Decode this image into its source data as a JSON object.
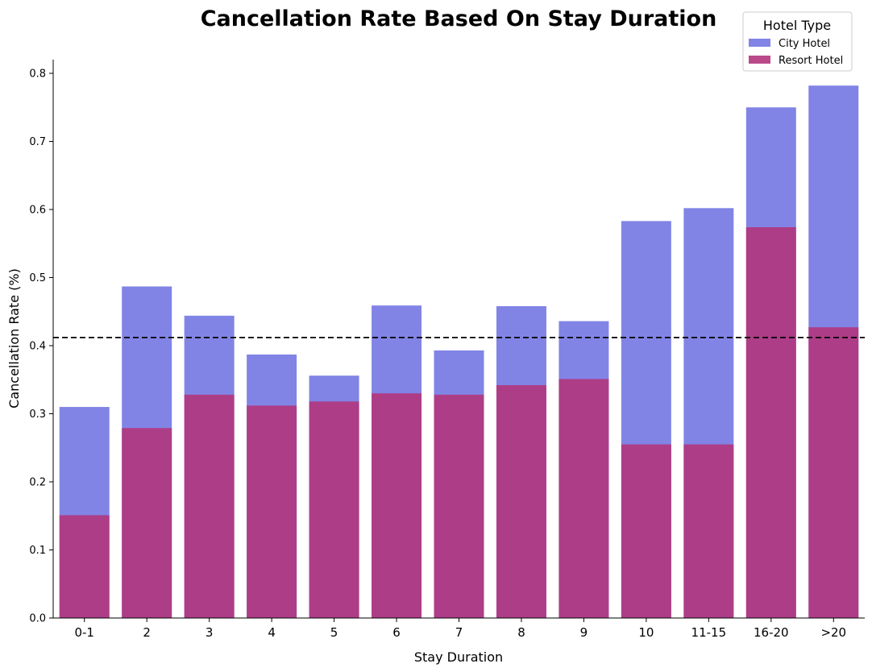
{
  "chart_data": {
    "type": "bar",
    "title": "Cancellation Rate Based On Stay Duration",
    "xlabel": "Stay Duration",
    "ylabel": "Cancellation Rate (%)",
    "categories": [
      "0-1",
      "2",
      "3",
      "4",
      "5",
      "6",
      "7",
      "8",
      "9",
      "10",
      "11-15",
      "16-20",
      ">20"
    ],
    "series": [
      {
        "name": "City Hotel",
        "color": "#6b6ee0",
        "values": [
          0.31,
          0.487,
          0.444,
          0.387,
          0.356,
          0.459,
          0.393,
          0.458,
          0.436,
          0.583,
          0.602,
          0.75,
          0.782
        ]
      },
      {
        "name": "Resort Hotel",
        "color": "#b3357d",
        "values": [
          0.151,
          0.279,
          0.328,
          0.312,
          0.318,
          0.33,
          0.328,
          0.342,
          0.351,
          0.255,
          0.255,
          0.574,
          0.427
        ]
      }
    ],
    "reference_line": {
      "value": 0.412,
      "style": "dashed"
    },
    "ylim": [
      0,
      0.82
    ],
    "yticks": [
      "0.0",
      "0.1",
      "0.2",
      "0.3",
      "0.4",
      "0.5",
      "0.6",
      "0.7",
      "0.8"
    ],
    "legend": {
      "title": "Hotel Type",
      "placement": "top-right"
    },
    "grid": false
  }
}
